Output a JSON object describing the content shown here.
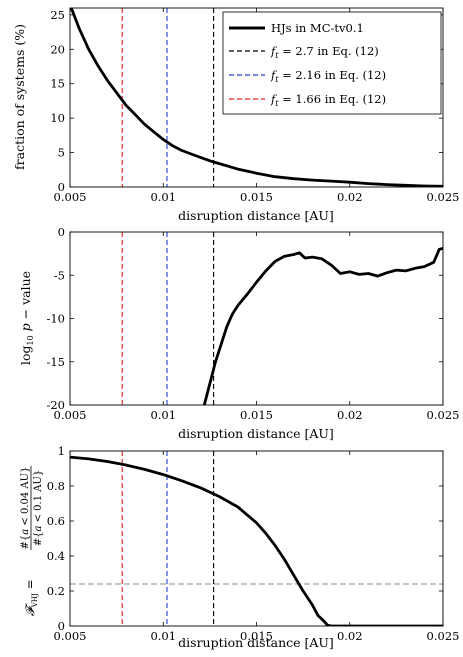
{
  "chart_data": [
    {
      "type": "line",
      "xlabel": "disruption distance [AU]",
      "ylabel": "fraction of systems (%)",
      "xlim": [
        0.005,
        0.025
      ],
      "ylim": [
        0,
        26
      ],
      "xticks": [
        0.005,
        0.01,
        0.015,
        0.02,
        0.025
      ],
      "xtick_labels": [
        "0.005",
        "0.01",
        "0.015",
        "0.02",
        "0.025"
      ],
      "yticks": [
        0,
        5,
        10,
        15,
        20,
        25
      ],
      "ytick_labels": [
        "0",
        "5",
        "10",
        "15",
        "20",
        "25"
      ],
      "grid": false,
      "legend_position": "top-right",
      "legend": [
        {
          "label": "HJs in MC-tv0.1",
          "color": "#000000",
          "style": "solid"
        },
        {
          "label": "f_t = 2.7 in Eq. (12)",
          "color": "#000000",
          "style": "dashed"
        },
        {
          "label": "f_t = 2.16 in Eq. (12)",
          "color": "#1f3fd0",
          "style": "dashed"
        },
        {
          "label": "f_t = 1.66 in Eq. (12)",
          "color": "#e0201e",
          "style": "dashed"
        }
      ],
      "vlines": [
        {
          "x": 0.0127,
          "color": "#000000"
        },
        {
          "x": 0.0102,
          "color": "#1f3fd0"
        },
        {
          "x": 0.0078,
          "color": "#e0201e"
        }
      ],
      "series": [
        {
          "name": "HJs in MC-tv0.1",
          "x": [
            0.005,
            0.0055,
            0.006,
            0.0065,
            0.007,
            0.0075,
            0.008,
            0.0085,
            0.009,
            0.0095,
            0.01,
            0.0105,
            0.011,
            0.0115,
            0.012,
            0.0125,
            0.013,
            0.0135,
            0.014,
            0.015,
            0.016,
            0.017,
            0.018,
            0.019,
            0.02,
            0.021,
            0.022,
            0.023,
            0.024,
            0.025
          ],
          "y": [
            26.5,
            23.0,
            20.0,
            17.6,
            15.5,
            13.7,
            11.9,
            10.5,
            9.1,
            8.0,
            6.9,
            6.0,
            5.3,
            4.8,
            4.3,
            3.8,
            3.4,
            3.0,
            2.6,
            2.0,
            1.5,
            1.2,
            1.0,
            0.85,
            0.7,
            0.5,
            0.35,
            0.25,
            0.15,
            0.1
          ]
        }
      ]
    },
    {
      "type": "line",
      "xlabel": "disruption distance [AU]",
      "ylabel": "log₁₀ p − value",
      "xlim": [
        0.005,
        0.025
      ],
      "ylim": [
        -20,
        0
      ],
      "xticks": [
        0.005,
        0.01,
        0.015,
        0.02,
        0.025
      ],
      "xtick_labels": [
        "0.005",
        "0.01",
        "0.015",
        "0.02",
        "0.025"
      ],
      "yticks": [
        -20,
        -15,
        -10,
        -5,
        0
      ],
      "ytick_labels": [
        "-20",
        "-15",
        "-10",
        "-5",
        "0"
      ],
      "grid": false,
      "vlines": [
        {
          "x": 0.0127,
          "color": "#000000"
        },
        {
          "x": 0.0102,
          "color": "#1f3fd0"
        },
        {
          "x": 0.0078,
          "color": "#e0201e"
        }
      ],
      "series": [
        {
          "x": [
            0.0122,
            0.0125,
            0.0128,
            0.0131,
            0.0134,
            0.0137,
            0.014,
            0.0145,
            0.015,
            0.0155,
            0.016,
            0.0165,
            0.017,
            0.0173,
            0.0176,
            0.018,
            0.0185,
            0.019,
            0.0195,
            0.02,
            0.0205,
            0.021,
            0.0215,
            0.022,
            0.0225,
            0.023,
            0.0235,
            0.024,
            0.0245,
            0.0248,
            0.025
          ],
          "y": [
            -20,
            -17.5,
            -15.0,
            -13.0,
            -11.0,
            -9.5,
            -8.5,
            -7.2,
            -5.8,
            -4.5,
            -3.4,
            -2.8,
            -2.6,
            -2.4,
            -3.0,
            -2.9,
            -3.1,
            -3.8,
            -4.8,
            -4.6,
            -4.9,
            -4.8,
            -5.1,
            -4.7,
            -4.4,
            -4.5,
            -4.2,
            -4.0,
            -3.5,
            -2.0,
            -1.9
          ]
        }
      ]
    },
    {
      "type": "line",
      "xlabel": "disruption distance [AU]",
      "ylabel": "𝓕_VHJ = #{a < 0.04 AU} / #{a < 0.1 AU}",
      "xlim": [
        0.005,
        0.025
      ],
      "ylim": [
        0,
        1
      ],
      "xticks": [
        0.005,
        0.01,
        0.015,
        0.02,
        0.025
      ],
      "xtick_labels": [
        "0.005",
        "0.01",
        "0.015",
        "0.02",
        "0.025"
      ],
      "yticks": [
        0,
        0.2,
        0.4,
        0.6,
        0.8,
        1
      ],
      "ytick_labels": [
        "0",
        "0.2",
        "0.4",
        "0.6",
        "0.8",
        "1"
      ],
      "grid": false,
      "hline": {
        "y": 0.24,
        "color": "#888888"
      },
      "vlines": [
        {
          "x": 0.0127,
          "color": "#000000"
        },
        {
          "x": 0.0102,
          "color": "#1f3fd0"
        },
        {
          "x": 0.0078,
          "color": "#e0201e"
        }
      ],
      "series": [
        {
          "x": [
            0.005,
            0.006,
            0.007,
            0.008,
            0.009,
            0.01,
            0.011,
            0.012,
            0.013,
            0.014,
            0.015,
            0.0155,
            0.016,
            0.0165,
            0.017,
            0.0175,
            0.018,
            0.0183,
            0.0186,
            0.0188,
            0.019,
            0.02,
            0.022,
            0.025
          ],
          "y": [
            0.965,
            0.955,
            0.94,
            0.92,
            0.895,
            0.865,
            0.83,
            0.79,
            0.74,
            0.68,
            0.59,
            0.53,
            0.46,
            0.38,
            0.29,
            0.2,
            0.12,
            0.06,
            0.03,
            0.005,
            0,
            0,
            0,
            0
          ]
        }
      ]
    }
  ]
}
